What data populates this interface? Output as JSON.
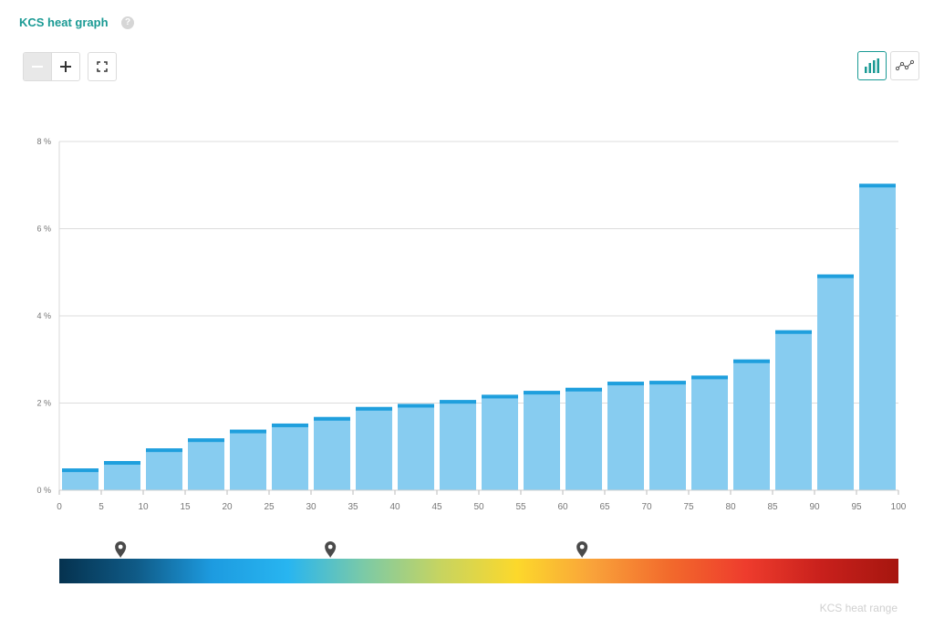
{
  "header": {
    "title": "KCS heat graph",
    "help_label": "?"
  },
  "toolbar": {
    "zoom_out_icon": "minus-icon",
    "zoom_in_icon": "plus-icon",
    "fit_icon": "expand-icon",
    "bar_view_icon": "bar-chart-icon",
    "line_view_icon": "line-chart-icon",
    "bar_view_active": true
  },
  "heat_scale": {
    "label": "KCS heat range",
    "colors": [
      "#05324f",
      "#0f5a86",
      "#1d9be0",
      "#28b5f0",
      "#7ccaa6",
      "#c7d460",
      "#fcd82b",
      "#f9a23a",
      "#f26a2c",
      "#ee3c2d",
      "#c8201c",
      "#a6160f"
    ],
    "marker_values": [
      7.3,
      32.3,
      62.3
    ]
  },
  "colors": {
    "accent": "#1a9a94",
    "bar_fill": "#87ccf0",
    "bar_cap": "#1f9fdd"
  },
  "chart_data": {
    "type": "bar",
    "x_ticks": [
      0,
      5,
      10,
      15,
      20,
      25,
      30,
      35,
      40,
      45,
      50,
      55,
      60,
      65,
      70,
      75,
      80,
      85,
      90,
      95,
      100
    ],
    "bin_starts": [
      0,
      5,
      10,
      15,
      20,
      25,
      30,
      35,
      40,
      45,
      50,
      55,
      60,
      65,
      70,
      75,
      80,
      85,
      90,
      95
    ],
    "bin_width": 5,
    "values": [
      0.5,
      0.67,
      0.96,
      1.19,
      1.39,
      1.53,
      1.68,
      1.91,
      1.98,
      2.07,
      2.19,
      2.28,
      2.35,
      2.49,
      2.51,
      2.63,
      3.0,
      3.67,
      4.95,
      7.03
    ],
    "xlim": [
      0,
      100
    ],
    "ylim": [
      0,
      8
    ],
    "y_ticks": [
      "0 %",
      "2 %",
      "4 %",
      "6 %",
      "8 %"
    ],
    "y_tick_values": [
      0,
      2,
      4,
      6,
      8
    ],
    "grid": true
  }
}
